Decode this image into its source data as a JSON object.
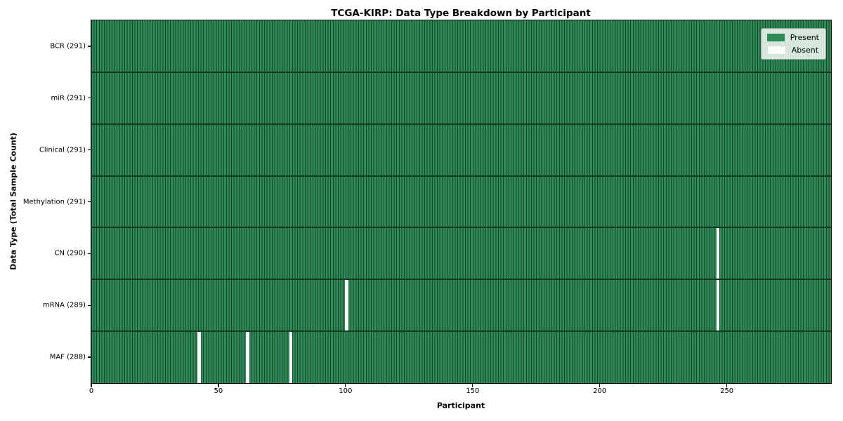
{
  "title": "TCGA-KIRP: Data Type Breakdown by Participant",
  "colors": {
    "present": "#2e8b57",
    "cell_edge": "#16432a",
    "absent": "#ffffff",
    "row_separator": "#12381f",
    "spine": "#0a0a0a",
    "legend_border": "#9aa59b"
  },
  "legend": {
    "present_label": "Present",
    "absent_label": "Absent"
  },
  "chart_data": {
    "type": "heatmap",
    "title": "TCGA-KIRP: Data Type Breakdown by Participant",
    "xlabel": "Participant",
    "ylabel": "Data Type (Total Sample Count)",
    "x_min": 0,
    "x_max": 291,
    "n_participants": 291,
    "x_ticks": [
      0,
      50,
      100,
      150,
      200,
      250
    ],
    "grid": false,
    "legend_position": "upper right",
    "legend": [
      {
        "label": "Present",
        "color": "#2e8b57"
      },
      {
        "label": "Absent",
        "color": "#ffffff"
      }
    ],
    "rows": [
      {
        "label": "BCR (291)",
        "data_type": "BCR",
        "present_count": 291,
        "absent_participants": []
      },
      {
        "label": "miR (291)",
        "data_type": "miR",
        "present_count": 291,
        "absent_participants": []
      },
      {
        "label": "Clinical (291)",
        "data_type": "Clinical",
        "present_count": 291,
        "absent_participants": []
      },
      {
        "label": "Methylation (291)",
        "data_type": "Methylation",
        "present_count": 291,
        "absent_participants": []
      },
      {
        "label": "CN (290)",
        "data_type": "CN",
        "present_count": 290,
        "absent_participants": [
          246
        ]
      },
      {
        "label": "mRNA (289)",
        "data_type": "mRNA",
        "present_count": 289,
        "absent_participants": [
          100,
          246
        ]
      },
      {
        "label": "MAF (288)",
        "data_type": "MAF",
        "present_count": 288,
        "absent_participants": [
          42,
          61,
          78
        ]
      }
    ]
  }
}
